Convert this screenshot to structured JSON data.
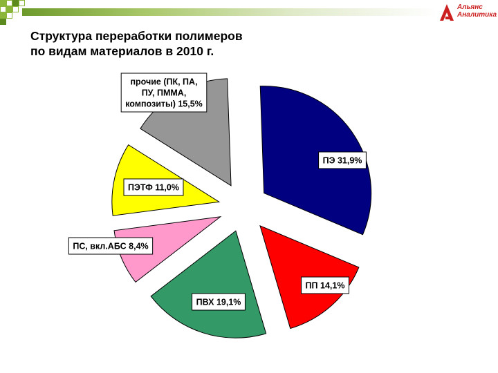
{
  "header": {
    "logo_line1": "Альянс",
    "logo_line2": "Аналитика",
    "accent_color": "#8bb63a",
    "logo_color": "#cc1f1f"
  },
  "title_line1": "Структура переработки полимеров",
  "title_line2": "по видам материалов в 2010 г.",
  "chart_data": {
    "type": "pie",
    "exploded": true,
    "legend": "none",
    "slices": [
      {
        "label_lines": [
          "ПЭ 31,9%"
        ],
        "value": 31.9,
        "color": "#000080"
      },
      {
        "label_lines": [
          "ПП 14,1%"
        ],
        "value": 14.1,
        "color": "#ff0000"
      },
      {
        "label_lines": [
          "ПВХ 19,1%"
        ],
        "value": 19.1,
        "color": "#339966"
      },
      {
        "label_lines": [
          "ПС, вкл.АБС 8,4%"
        ],
        "value": 8.4,
        "color": "#ff99cc"
      },
      {
        "label_lines": [
          "ПЭТФ 11,0%"
        ],
        "value": 11.0,
        "color": "#ffff00"
      },
      {
        "label_lines": [
          "прочие (ПК, ПА,",
          "ПУ, ПММА,",
          "композиты) 15,5%"
        ],
        "value": 15.5,
        "color": "#969696"
      }
    ]
  }
}
